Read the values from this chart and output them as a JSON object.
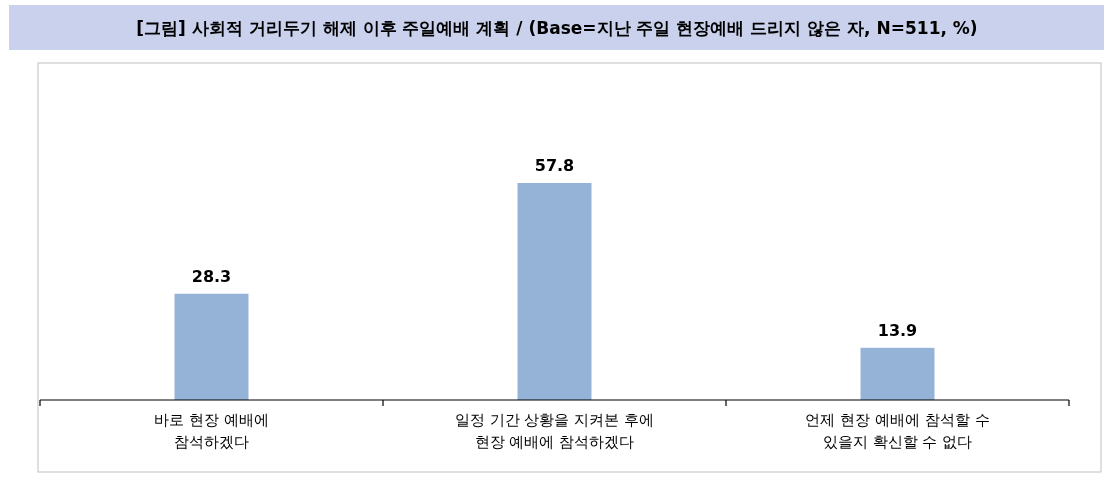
{
  "chart_data": {
    "type": "bar",
    "title": "[그림] 사회적 거리두기 해제 이후 주일예배 계획 / (Base=지난 주일 현장예배 드리지 않은 자, N=511, %)",
    "categories": [
      "바로 현장 예배에\n참석하겠다",
      "일정 기간 상황을 지켜본 후에\n현장 예배에 참석하겠다",
      "언제 현장 예배에 참석할 수\n있을지 확신할 수 없다"
    ],
    "values": [
      28.3,
      57.8,
      13.9
    ],
    "color": "#95b3d7",
    "data_labels": true,
    "grid": false,
    "legend": false
  }
}
